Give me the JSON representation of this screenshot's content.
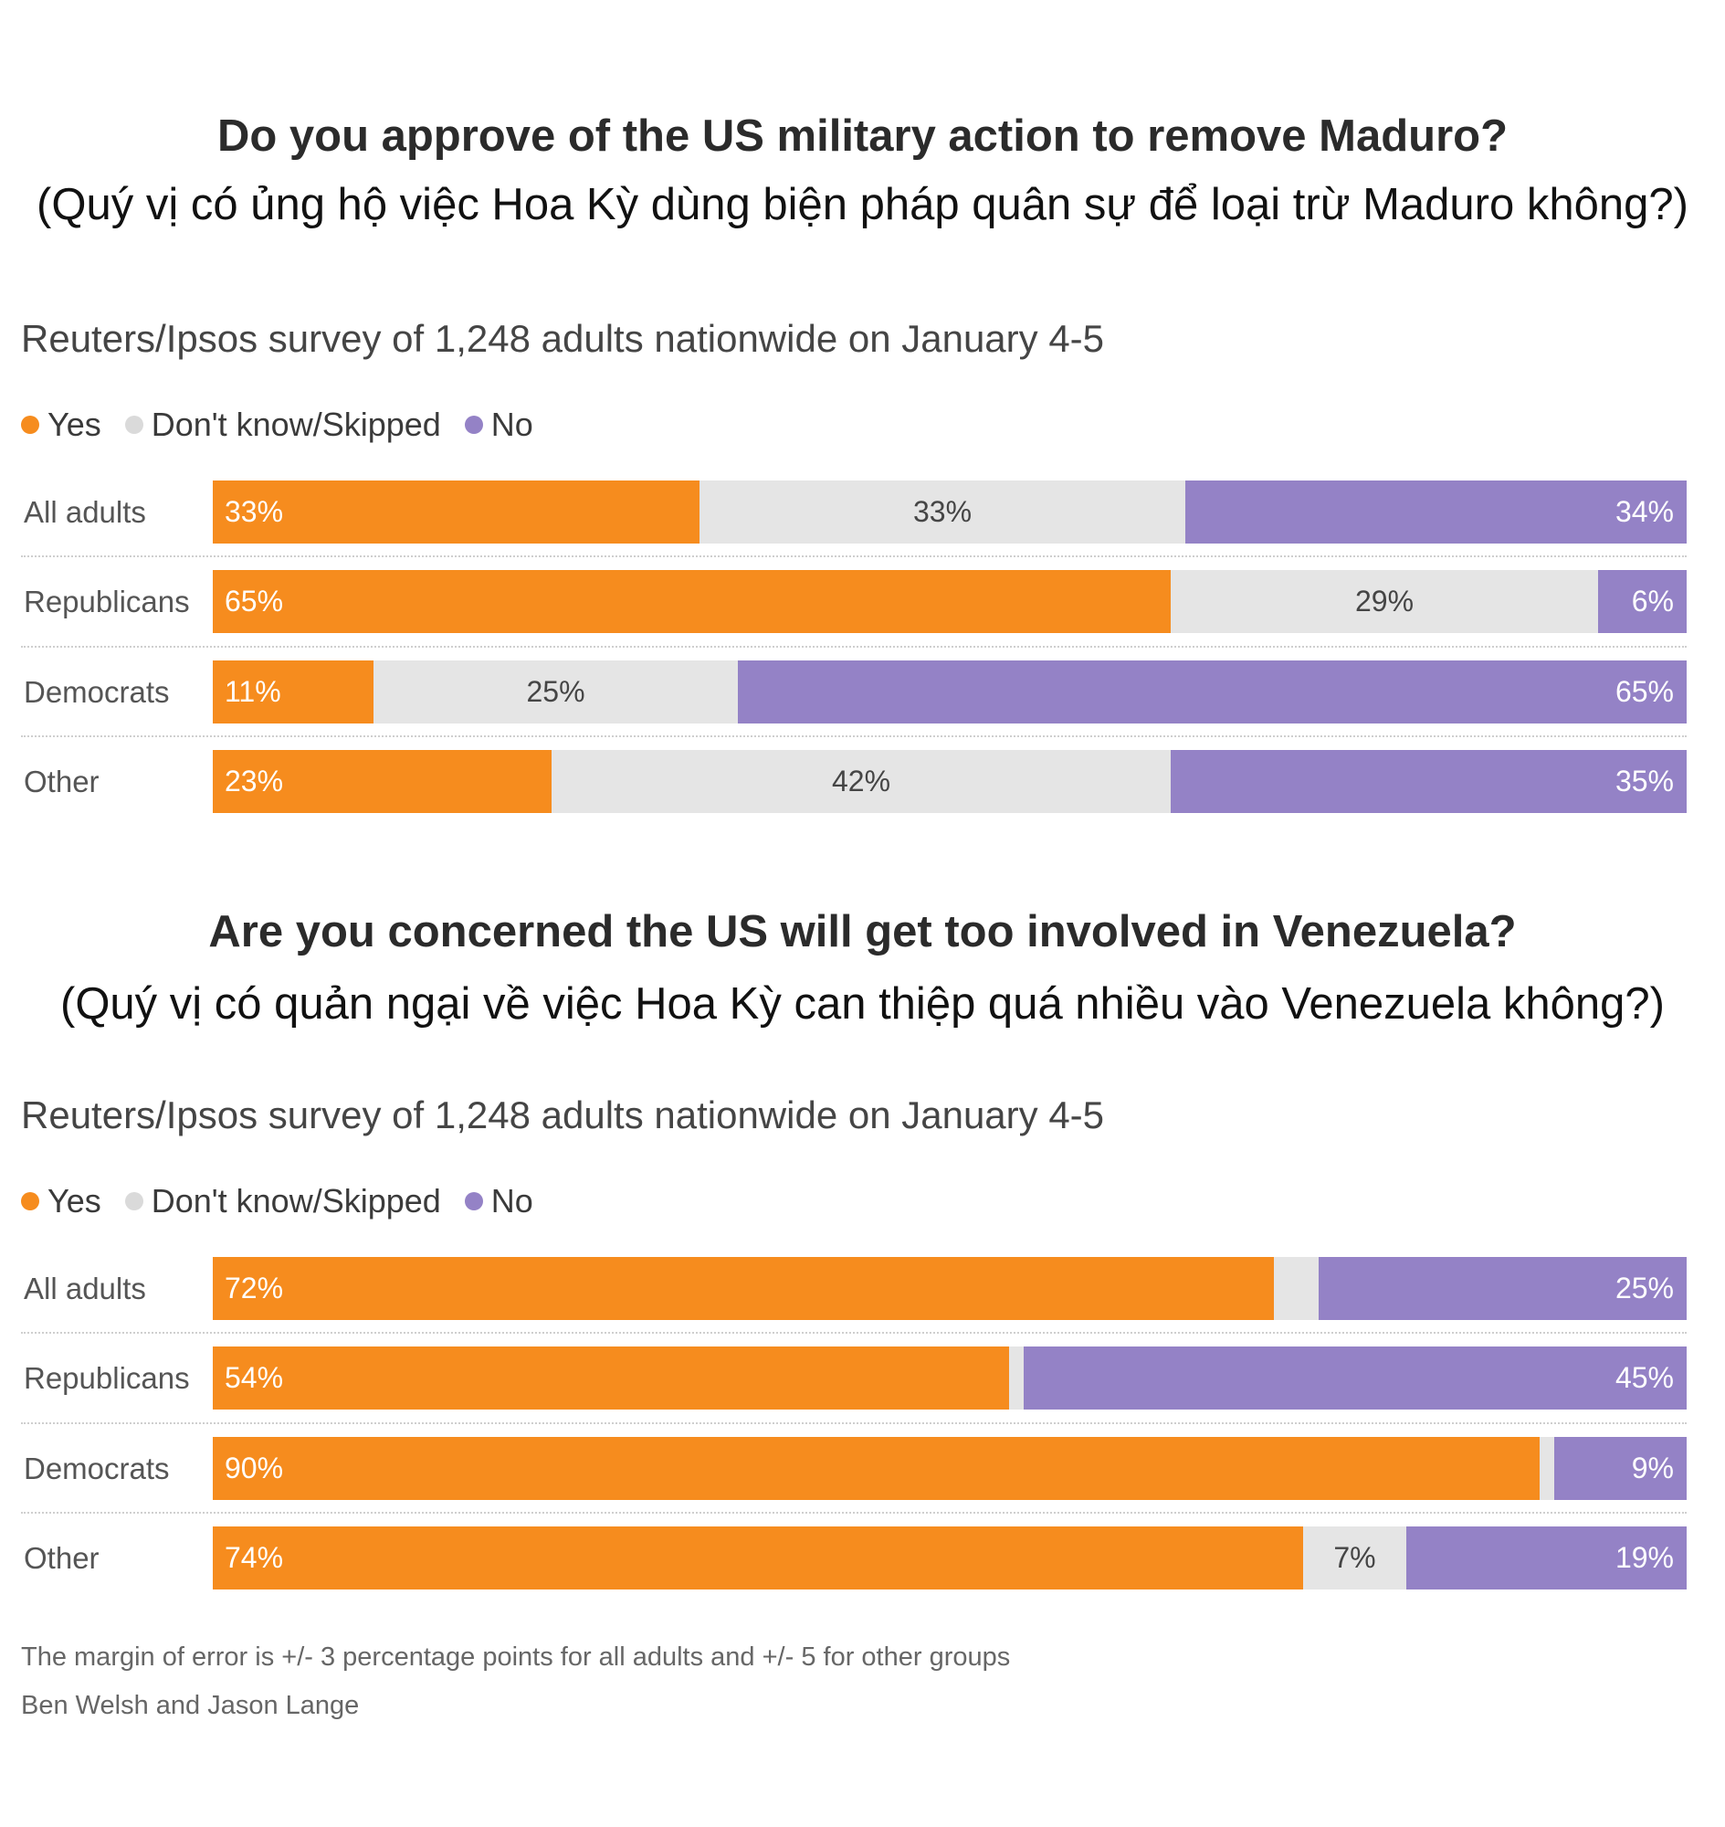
{
  "chart_data": [
    {
      "type": "bar",
      "orientation": "horizontal",
      "stacked": true,
      "title": "Do you approve of the US military action to remove Maduro?",
      "subtitle": "(Quý vị có ủng hộ việc Hoa Kỳ dùng biện pháp quân sự để loại trừ Maduro không?)",
      "source": "Reuters/Ipsos survey of 1,248 adults nationwide on January 4-5",
      "unit": "%",
      "xlim": [
        0,
        100
      ],
      "legend_position": "top-left",
      "categories": [
        "All adults",
        "Republicans",
        "Democrats",
        "Other"
      ],
      "series": [
        {
          "name": "Yes",
          "color": "#f68c1e",
          "legend_color": "#f68c1e",
          "values": [
            33,
            65,
            11,
            23
          ],
          "labeled": [
            true,
            true,
            true,
            true
          ]
        },
        {
          "name": "Don't know/Skipped",
          "color": "#e5e5e5",
          "legend_color": "#dadada",
          "values": [
            33,
            29,
            25,
            42
          ],
          "labeled": [
            true,
            true,
            true,
            true
          ]
        },
        {
          "name": "No",
          "color": "#9482c6",
          "legend_color": "#9482c6",
          "values": [
            34,
            6,
            65,
            35
          ],
          "labeled": [
            true,
            true,
            true,
            true
          ]
        }
      ]
    },
    {
      "type": "bar",
      "orientation": "horizontal",
      "stacked": true,
      "title": "Are you concerned the US will get too involved in Venezuela?",
      "subtitle": "(Quý vị có quản ngại về việc Hoa Kỳ can thiệp quá nhiều vào Venezuela không?)",
      "source": "Reuters/Ipsos survey of 1,248 adults nationwide on January 4-5",
      "unit": "%",
      "xlim": [
        0,
        100
      ],
      "legend_position": "top-left",
      "categories": [
        "All adults",
        "Republicans",
        "Democrats",
        "Other"
      ],
      "series": [
        {
          "name": "Yes",
          "color": "#f68c1e",
          "legend_color": "#f68c1e",
          "values": [
            72,
            54,
            90,
            74
          ],
          "labeled": [
            true,
            true,
            true,
            true
          ]
        },
        {
          "name": "Don't know/Skipped",
          "color": "#e5e5e5",
          "legend_color": "#dadada",
          "values": [
            3,
            1,
            1,
            7
          ],
          "labeled": [
            false,
            false,
            false,
            true
          ]
        },
        {
          "name": "No",
          "color": "#9482c6",
          "legend_color": "#9482c6",
          "values": [
            25,
            45,
            9,
            19
          ],
          "labeled": [
            true,
            true,
            true,
            true
          ]
        }
      ]
    }
  ],
  "footer": {
    "note": "The margin of error is +/- 3 percentage points for all adults and +/- 5 for other groups",
    "byline": "Ben Welsh and Jason Lange"
  }
}
